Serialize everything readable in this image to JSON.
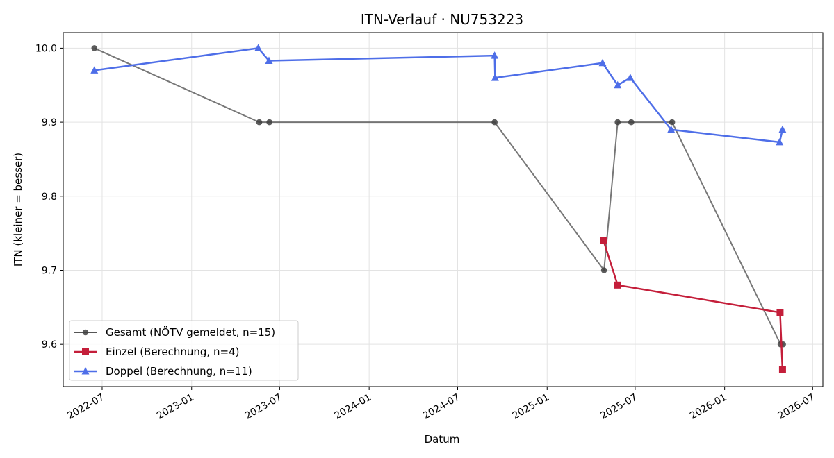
{
  "chart_data": {
    "type": "line",
    "title": "ITN-Verlauf · NU753223",
    "xlabel": "Datum",
    "ylabel": "ITN  (kleiner = besser)",
    "x_ticks": [
      "2022-07",
      "2023-01",
      "2023-07",
      "2024-01",
      "2024-07",
      "2025-01",
      "2025-07",
      "2026-01",
      "2026-07"
    ],
    "y_ticks": [
      "9.6",
      "9.7",
      "9.8",
      "9.9",
      "10.0"
    ],
    "xlim": [
      "2022-04-12",
      "2026-07-22"
    ],
    "ylim": [
      9.543,
      10.021
    ],
    "grid": true,
    "legend_position": "lower-left",
    "series": [
      {
        "name": "Gesamt (NÖTV gemeldet, n=15)",
        "color": "#555555",
        "marker": "circle",
        "points": [
          {
            "x": "2022-06-15",
            "y": 10.0
          },
          {
            "x": "2023-05-20",
            "y": 9.9
          },
          {
            "x": "2023-06-10",
            "y": 9.9
          },
          {
            "x": "2024-09-15",
            "y": 9.9
          },
          {
            "x": "2025-04-28",
            "y": 9.7
          },
          {
            "x": "2025-05-26",
            "y": 9.9
          },
          {
            "x": "2025-06-23",
            "y": 9.9
          },
          {
            "x": "2025-09-15",
            "y": 9.9
          },
          {
            "x": "2026-04-26",
            "y": 9.6
          },
          {
            "x": "2026-05-01",
            "y": 9.6
          }
        ]
      },
      {
        "name": "Einzel (Berechnung, n=4)",
        "color": "#c41e3a",
        "marker": "square",
        "points": [
          {
            "x": "2025-04-27",
            "y": 9.74
          },
          {
            "x": "2025-05-26",
            "y": 9.68
          },
          {
            "x": "2026-04-25",
            "y": 9.643
          },
          {
            "x": "2026-04-30",
            "y": 9.566
          }
        ]
      },
      {
        "name": "Doppel (Berechnung, n=11)",
        "color": "#4e6ee8",
        "marker": "triangle",
        "points": [
          {
            "x": "2022-06-15",
            "y": 9.97
          },
          {
            "x": "2023-05-18",
            "y": 10.0
          },
          {
            "x": "2023-06-09",
            "y": 9.983
          },
          {
            "x": "2024-09-15",
            "y": 9.99
          },
          {
            "x": "2024-09-16",
            "y": 9.96
          },
          {
            "x": "2025-04-25",
            "y": 9.98
          },
          {
            "x": "2025-05-26",
            "y": 9.95
          },
          {
            "x": "2025-06-21",
            "y": 9.96
          },
          {
            "x": "2025-09-13",
            "y": 9.89
          },
          {
            "x": "2026-04-24",
            "y": 9.873
          },
          {
            "x": "2026-04-30",
            "y": 9.89
          }
        ]
      }
    ]
  }
}
